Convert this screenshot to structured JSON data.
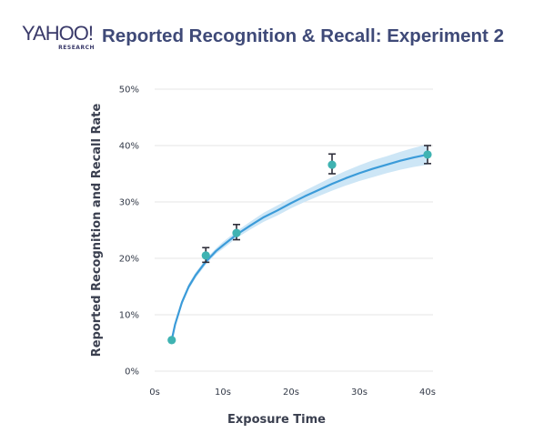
{
  "header": {
    "logo_text": "YAHOO!",
    "logo_sub": "RESEARCH",
    "title": "Reported Recognition & Recall: Experiment 2"
  },
  "chart_data": {
    "type": "scatter",
    "title": "Reported Recognition & Recall: Experiment 2",
    "xlabel": "Exposure Time",
    "ylabel": "Reported Recognition and Recall Rate",
    "xlim": [
      0,
      40
    ],
    "ylim": [
      0,
      50
    ],
    "x_ticks": [
      "0s",
      "10s",
      "20s",
      "30s",
      "40s"
    ],
    "y_ticks": [
      "0%",
      "10%",
      "20%",
      "30%",
      "40%",
      "50%"
    ],
    "grid": "horizontal",
    "points": [
      {
        "x": 2.5,
        "y": 5.5,
        "err_low": null,
        "err_high": null
      },
      {
        "x": 7.5,
        "y": 20.5,
        "err_low": 19.3,
        "err_high": 21.9
      },
      {
        "x": 12,
        "y": 24.5,
        "err_low": 23.3,
        "err_high": 26.0
      },
      {
        "x": 26,
        "y": 36.6,
        "err_low": 35.0,
        "err_high": 38.5
      },
      {
        "x": 40,
        "y": 38.4,
        "err_low": 36.8,
        "err_high": 40.0
      }
    ],
    "fit_curve": {
      "x": [
        2.5,
        3,
        4,
        5,
        6,
        7.5,
        9,
        10,
        12,
        14,
        16,
        18,
        20,
        22,
        24,
        26,
        28,
        30,
        32,
        34,
        36,
        38,
        40
      ],
      "y": [
        5.5,
        8.3,
        12.2,
        15.0,
        17.0,
        19.4,
        21.3,
        22.3,
        24.2,
        25.8,
        27.3,
        28.5,
        29.8,
        31.0,
        32.1,
        33.2,
        34.2,
        35.1,
        35.9,
        36.6,
        37.3,
        37.9,
        38.4
      ],
      "band_halfwidth": [
        0.0,
        0.3,
        0.5,
        0.5,
        0.5,
        0.5,
        0.5,
        0.6,
        0.6,
        0.7,
        0.8,
        0.9,
        0.9,
        1.0,
        1.1,
        1.2,
        1.3,
        1.4,
        1.5,
        1.5,
        1.6,
        1.7,
        1.8
      ]
    },
    "colors": {
      "point": "#3fb3b2",
      "curve": "#3b9bd9",
      "band": "#cde6f6",
      "errorbar": "#2e2e3a",
      "grid": "#e6e6e6",
      "title": "#3f4a78"
    }
  }
}
